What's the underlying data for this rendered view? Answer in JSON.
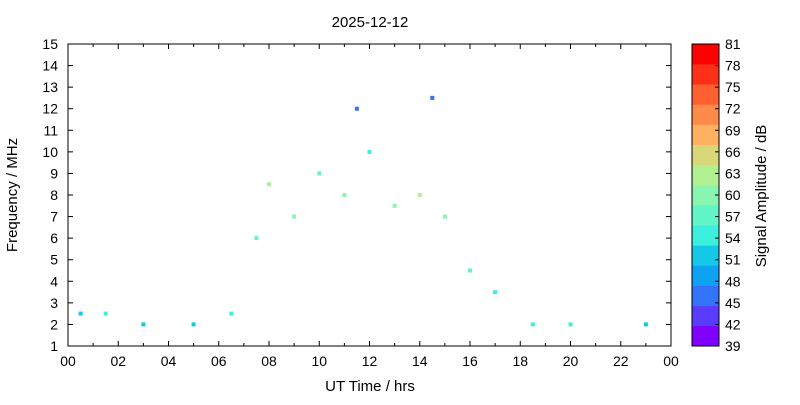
{
  "chart_data": {
    "type": "heatmap",
    "title": "2025-12-12",
    "xlabel": "UT Time / hrs",
    "ylabel": "Frequency / MHz",
    "colorbar_label": "Signal Amplitude / dB",
    "xlim": [
      0,
      24
    ],
    "ylim": [
      1,
      15
    ],
    "x_ticks": [
      "00",
      "02",
      "04",
      "06",
      "08",
      "10",
      "12",
      "14",
      "16",
      "18",
      "20",
      "22",
      "00"
    ],
    "y_ticks": [
      "1",
      "2",
      "3",
      "4",
      "5",
      "6",
      "7",
      "8",
      "9",
      "10",
      "11",
      "12",
      "13",
      "14",
      "15"
    ],
    "colorbar_ticks": [
      "39",
      "42",
      "45",
      "48",
      "51",
      "54",
      "57",
      "60",
      "63",
      "66",
      "69",
      "72",
      "75",
      "78",
      "81"
    ],
    "colorbar_colors": [
      "#8000ff",
      "#5a3cfe",
      "#3373fa",
      "#0da2f2",
      "#15c8e8",
      "#3cf0dd",
      "#62f5c6",
      "#88f5b0",
      "#b0f090",
      "#d8d878",
      "#ffb060",
      "#ff8a4a",
      "#ff6030",
      "#ff3018",
      "#ff0000"
    ],
    "grid": false,
    "series": [
      {
        "x": 0.5,
        "y": 2.5,
        "value": 51
      },
      {
        "x": 1.5,
        "y": 2.5,
        "value": 54
      },
      {
        "x": 3.0,
        "y": 2.0,
        "value": 51
      },
      {
        "x": 5.0,
        "y": 2.0,
        "value": 51
      },
      {
        "x": 6.5,
        "y": 2.5,
        "value": 54
      },
      {
        "x": 7.5,
        "y": 6.0,
        "value": 57
      },
      {
        "x": 8.0,
        "y": 8.5,
        "value": 63
      },
      {
        "x": 9.0,
        "y": 7.0,
        "value": 60
      },
      {
        "x": 10.0,
        "y": 9.0,
        "value": 57
      },
      {
        "x": 11.0,
        "y": 8.0,
        "value": 60
      },
      {
        "x": 11.5,
        "y": 12.0,
        "value": 45
      },
      {
        "x": 12.0,
        "y": 10.0,
        "value": 54
      },
      {
        "x": 13.0,
        "y": 7.5,
        "value": 60
      },
      {
        "x": 14.0,
        "y": 8.0,
        "value": 63
      },
      {
        "x": 14.5,
        "y": 12.5,
        "value": 45
      },
      {
        "x": 15.0,
        "y": 7.0,
        "value": 60
      },
      {
        "x": 16.0,
        "y": 4.5,
        "value": 57
      },
      {
        "x": 17.0,
        "y": 3.5,
        "value": 54
      },
      {
        "x": 18.5,
        "y": 2.0,
        "value": 54
      },
      {
        "x": 20.0,
        "y": 2.0,
        "value": 54
      },
      {
        "x": 23.0,
        "y": 2.0,
        "value": 51
      }
    ]
  }
}
